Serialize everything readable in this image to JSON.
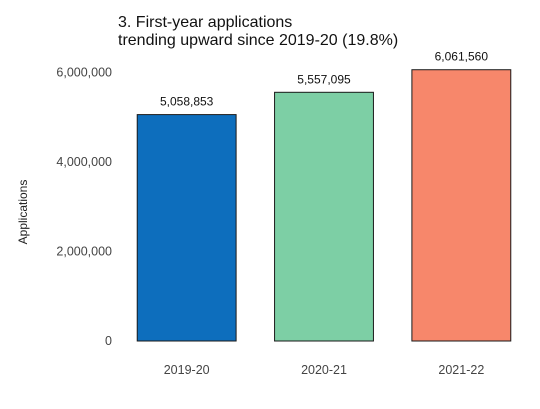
{
  "chart_data": {
    "type": "bar",
    "title_lines": [
      "3. First-year applications",
      "trending upward since 2019-20 (19.8%)"
    ],
    "xlabel": "",
    "ylabel": "Applications",
    "categories": [
      "2019-20",
      "2020-21",
      "2021-22"
    ],
    "values": [
      5058853,
      5557095,
      6061560
    ],
    "data_labels": [
      "5,058,853",
      "5,557,095",
      "6,061,560"
    ],
    "colors": [
      "#0d6ebd",
      "#7dcfa5",
      "#f7876b"
    ],
    "ylim": [
      0,
      6100000
    ],
    "yticks": [
      0,
      2000000,
      4000000,
      6000000
    ],
    "ytick_labels": [
      "0",
      "2,000,000",
      "4,000,000",
      "6,000,000"
    ],
    "grid": false,
    "legend": "none"
  }
}
